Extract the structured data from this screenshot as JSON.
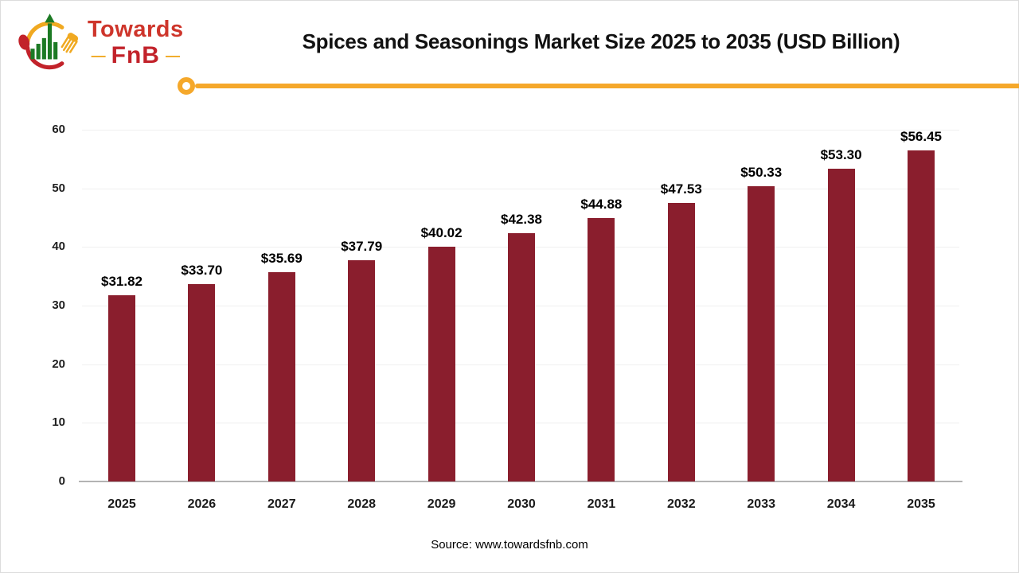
{
  "header": {
    "title": "Spices and Seasonings Market Size 2025 to 2035 (USD Billion)",
    "logo": {
      "brand_top": "Towards",
      "brand_bottom": "FnB",
      "dash": "—"
    }
  },
  "chart_data": {
    "type": "bar",
    "title": "Spices and Seasonings Market Size 2025 to 2035 (USD Billion)",
    "categories": [
      "2025",
      "2026",
      "2027",
      "2028",
      "2029",
      "2030",
      "2031",
      "2032",
      "2033",
      "2034",
      "2035"
    ],
    "values": [
      31.82,
      33.7,
      35.69,
      37.79,
      40.02,
      42.38,
      44.88,
      47.53,
      50.33,
      53.3,
      56.45
    ],
    "value_label_prefix": "$",
    "xlabel": "",
    "ylabel": "",
    "ylim": [
      0,
      60
    ],
    "yticks": [
      0,
      10,
      20,
      30,
      40,
      50,
      60
    ],
    "grid": true,
    "legend_position": "none",
    "bar_color": "#8a1e2d"
  },
  "footer": {
    "source": "Source: www.towardsfnb.com"
  },
  "colors": {
    "accent_line": "#f5a82b",
    "bar": "#8a1e2d",
    "gridline": "#efefef",
    "axis": "#b3b3b3",
    "brand_red": "#ce352b",
    "brand_dark_red": "#c2222a",
    "brand_yellow": "#f0a921",
    "brand_green": "#1c7a24"
  }
}
